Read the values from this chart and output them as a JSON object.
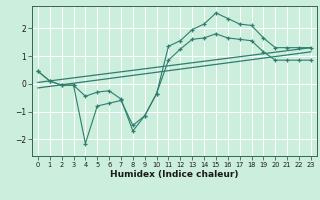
{
  "xlabel": "Humidex (Indice chaleur)",
  "background_color": "#cceedd",
  "grid_color": "#ffffff",
  "line_color": "#2e7d6e",
  "xlim": [
    -0.5,
    23.5
  ],
  "ylim": [
    -2.6,
    2.8
  ],
  "yticks": [
    -2,
    -1,
    0,
    1,
    2
  ],
  "xticks": [
    0,
    1,
    2,
    3,
    4,
    5,
    6,
    7,
    8,
    9,
    10,
    11,
    12,
    13,
    14,
    15,
    16,
    17,
    18,
    19,
    20,
    21,
    22,
    23
  ],
  "series_main": [
    {
      "x": [
        0,
        1,
        2,
        3,
        4,
        5,
        6,
        7,
        8,
        9,
        10,
        11,
        12,
        13,
        14,
        15,
        16,
        17,
        18,
        19,
        20,
        21,
        22,
        23
      ],
      "y": [
        0.45,
        0.1,
        -0.05,
        -0.05,
        -2.15,
        -0.8,
        -0.7,
        -0.6,
        -1.5,
        -1.15,
        -0.35,
        1.35,
        1.55,
        1.95,
        2.15,
        2.55,
        2.35,
        2.15,
        2.1,
        1.65,
        1.3,
        1.3,
        1.3,
        1.3
      ]
    },
    {
      "x": [
        0,
        1,
        2,
        3,
        4,
        5,
        6,
        7,
        8,
        9,
        10,
        11,
        12,
        13,
        14,
        15,
        16,
        17,
        18,
        19,
        20,
        21,
        22,
        23
      ],
      "y": [
        0.45,
        0.1,
        -0.05,
        -0.05,
        -0.45,
        -0.3,
        -0.25,
        -0.55,
        -1.7,
        -1.15,
        -0.35,
        0.85,
        1.25,
        1.6,
        1.65,
        1.8,
        1.65,
        1.6,
        1.55,
        1.15,
        0.85,
        0.85,
        0.85,
        0.85
      ]
    }
  ],
  "series_linear": [
    {
      "x": [
        0,
        23
      ],
      "y": [
        0.05,
        1.3
      ]
    },
    {
      "x": [
        0,
        23
      ],
      "y": [
        -0.15,
        1.15
      ]
    }
  ]
}
